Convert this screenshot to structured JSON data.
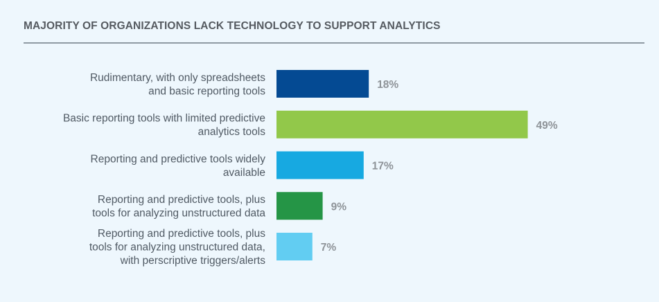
{
  "chart_data": {
    "type": "bar",
    "orientation": "horizontal",
    "title": "MAJORITY OF ORGANIZATIONS LACK TECHNOLOGY TO SUPPORT ANALYTICS",
    "categories": [
      [
        "Rudimentary, with only spreadsheets",
        "and basic reporting tools"
      ],
      [
        "Basic reporting tools with limited predictive",
        "analytics tools"
      ],
      [
        "Reporting and predictive tools widely",
        "available"
      ],
      [
        "Reporting and predictive tools, plus",
        "tools for analyzing unstructured data"
      ],
      [
        "Reporting and predictive tools, plus",
        "tools for analyzing unstructured data,",
        "with perscriptive triggers/alerts"
      ]
    ],
    "values": [
      18,
      49,
      17,
      9,
      7
    ],
    "value_labels": [
      "18%",
      "49%",
      "17%",
      "9%",
      "7%"
    ],
    "colors": [
      "#044a93",
      "#92c84a",
      "#17a9e1",
      "#259546",
      "#62cdf2"
    ],
    "xlim": [
      0,
      100
    ],
    "grid": false,
    "legend": "none"
  }
}
